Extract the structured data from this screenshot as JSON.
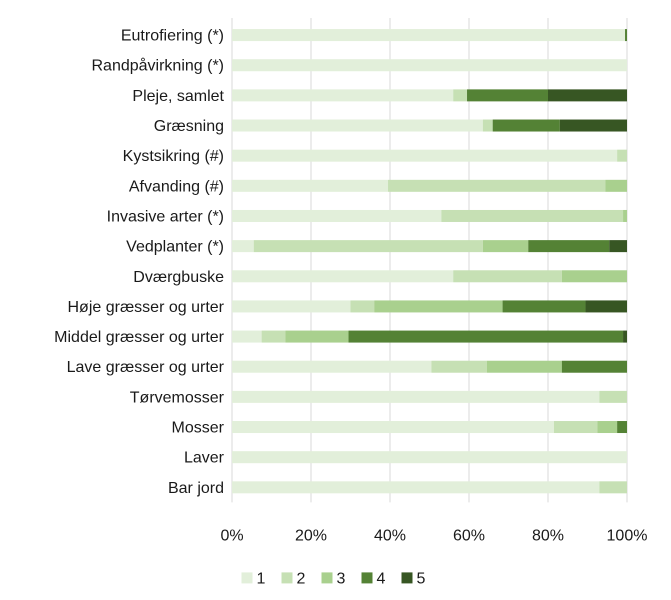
{
  "chart_data": {
    "type": "bar",
    "orientation": "horizontal",
    "stacked": "percent",
    "categories": [
      "Eutrofiering (*)",
      "Randpåvirkning (*)",
      "Pleje, samlet",
      "Græsning",
      "Kystsikring (#)",
      "Afvanding (#)",
      "Invasive arter (*)",
      "Vedplanter (*)",
      "Dværgbuske",
      "Høje græsser og urter",
      "Middel græsser og urter",
      "Lave græsser og urter",
      "Tørvemosser",
      "Mosser",
      "Laver",
      "Bar jord"
    ],
    "series": [
      {
        "name": "1",
        "color": "#e2efda",
        "values": [
          99.5,
          100,
          56,
          63.5,
          97.5,
          39.5,
          53,
          5.5,
          56,
          30,
          7.5,
          50.5,
          93,
          81.5,
          100,
          93
        ]
      },
      {
        "name": "2",
        "color": "#c6e0b4",
        "values": [
          0,
          0,
          3.5,
          2.5,
          2.5,
          55,
          46,
          58,
          27.5,
          6,
          6,
          14,
          7,
          11,
          0,
          7
        ]
      },
      {
        "name": "3",
        "color": "#a9d08e",
        "values": [
          0,
          0,
          0,
          0,
          0,
          5.5,
          1,
          11.5,
          16.5,
          32.5,
          16,
          19,
          0,
          5,
          0,
          0
        ]
      },
      {
        "name": "4",
        "color": "#548235",
        "values": [
          0.5,
          0,
          20.5,
          17,
          0,
          0,
          0,
          20.5,
          0,
          21,
          69.5,
          16.5,
          0,
          2.5,
          0,
          0
        ]
      },
      {
        "name": "5",
        "color": "#375623",
        "values": [
          0,
          0,
          20,
          17,
          0,
          0,
          0,
          4.5,
          0,
          10.5,
          1,
          0,
          0,
          0,
          0,
          0
        ]
      }
    ],
    "x_ticks": [
      "0%",
      "20%",
      "40%",
      "60%",
      "80%",
      "100%"
    ],
    "xlim": [
      0,
      100
    ],
    "grid": "vertical",
    "legend_position": "bottom"
  }
}
